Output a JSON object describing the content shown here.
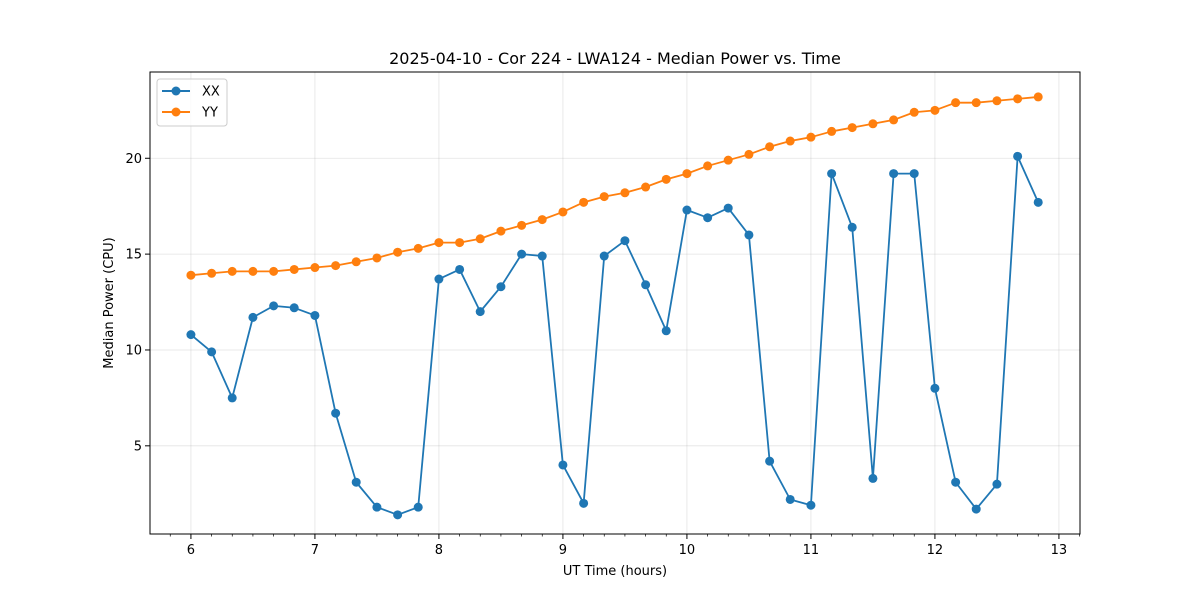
{
  "chart_data": {
    "type": "line",
    "title": "2025-04-10 - Cor 224 - LWA124 - Median Power vs. Time",
    "xlabel": "UT Time (hours)",
    "ylabel": "Median Power (CPU)",
    "xlim": [
      5.67,
      13.17
    ],
    "ylim": [
      0.4,
      24.5
    ],
    "x_ticks": [
      6,
      7,
      8,
      9,
      10,
      11,
      12,
      13
    ],
    "x_tick_labels": [
      "6",
      "7",
      "8",
      "9",
      "10",
      "11",
      "12",
      "13"
    ],
    "y_ticks": [
      5,
      10,
      15,
      20
    ],
    "y_tick_labels": [
      "5",
      "10",
      "15",
      "20"
    ],
    "grid": true,
    "legend_position": "top-left",
    "x": [
      6.0,
      6.167,
      6.333,
      6.5,
      6.667,
      6.833,
      7.0,
      7.167,
      7.333,
      7.5,
      7.667,
      7.833,
      8.0,
      8.167,
      8.333,
      8.5,
      8.667,
      8.833,
      9.0,
      9.167,
      9.333,
      9.5,
      9.667,
      9.833,
      10.0,
      10.167,
      10.333,
      10.5,
      10.667,
      10.833,
      11.0,
      11.167,
      11.333,
      11.5,
      11.667,
      11.833,
      12.0,
      12.167,
      12.333,
      12.5,
      12.667,
      12.833
    ],
    "series": [
      {
        "name": "XX",
        "color": "#1f77b4",
        "values": [
          10.8,
          9.9,
          7.5,
          11.7,
          12.3,
          12.2,
          11.8,
          6.7,
          3.1,
          1.8,
          1.4,
          1.8,
          13.7,
          14.2,
          12.0,
          13.3,
          15.0,
          14.9,
          4.0,
          2.0,
          14.9,
          15.7,
          13.4,
          11.0,
          17.3,
          16.9,
          17.4,
          16.0,
          4.2,
          2.2,
          1.9,
          19.2,
          16.4,
          3.3,
          19.2,
          19.2,
          8.0,
          3.1,
          1.7,
          3.0,
          20.1,
          17.7
        ]
      },
      {
        "name": "YY",
        "color": "#ff7f0e",
        "values": [
          13.9,
          14.0,
          14.1,
          14.1,
          14.1,
          14.2,
          14.3,
          14.4,
          14.6,
          14.8,
          15.1,
          15.3,
          15.6,
          15.6,
          15.8,
          16.2,
          16.5,
          16.8,
          17.2,
          17.7,
          18.0,
          18.2,
          18.5,
          18.9,
          19.2,
          19.6,
          19.9,
          20.2,
          20.6,
          20.9,
          21.1,
          21.4,
          21.6,
          21.8,
          22.0,
          22.4,
          22.5,
          22.9,
          22.9,
          23.0,
          23.1,
          23.2
        ]
      }
    ]
  }
}
